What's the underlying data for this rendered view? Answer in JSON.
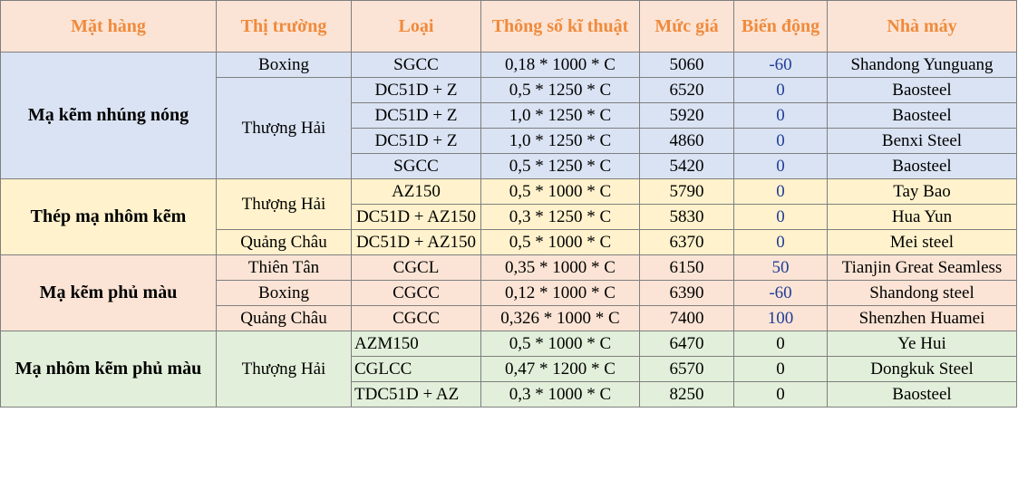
{
  "headers": [
    "Mặt hàng",
    "Thị trường",
    "Loại",
    "Thông số kĩ thuật",
    "Mức giá",
    "Biến động",
    "Nhà máy"
  ],
  "groups": [
    {
      "category": "Mạ kẽm nhúng nóng",
      "markets": [
        "Boxing",
        "Thượng Hải"
      ],
      "rows": [
        {
          "type": "SGCC",
          "spec": "0,18 * 1000 * C",
          "price": "5060",
          "change": "-60",
          "factory": "Shandong Yunguang"
        },
        {
          "type": "DC51D + Z",
          "spec": "0,5 * 1250 * C",
          "price": "6520",
          "change": "0",
          "factory": "Baosteel"
        },
        {
          "type": "DC51D + Z",
          "spec": "1,0 * 1250 * C",
          "price": "5920",
          "change": "0",
          "factory": "Baosteel"
        },
        {
          "type": "DC51D + Z",
          "spec": "1,0 * 1250 * C",
          "price": "4860",
          "change": "0",
          "factory": "Benxi Steel"
        },
        {
          "type": "SGCC",
          "spec": "0,5 * 1250 * C",
          "price": "5420",
          "change": "0",
          "factory": "Baosteel"
        }
      ]
    },
    {
      "category": "Thép mạ nhôm kẽm",
      "markets": [
        "Thượng Hải",
        "Quảng Châu"
      ],
      "rows": [
        {
          "type": "AZ150",
          "spec": "0,5 * 1000 * C",
          "price": "5790",
          "change": "0",
          "factory": "Tay Bao"
        },
        {
          "type": "DC51D + AZ150",
          "spec": "0,3 * 1250 * C",
          "price": "5830",
          "change": "0",
          "factory": "Hua Yun"
        },
        {
          "type": "DC51D + AZ150",
          "spec": "0,5 * 1000 * C",
          "price": "6370",
          "change": "0",
          "factory": "Mei steel"
        }
      ]
    },
    {
      "category": "Mạ kẽm phủ màu",
      "markets": [
        "Thiên Tân",
        "Boxing",
        "Quảng Châu"
      ],
      "rows": [
        {
          "type": "CGCL",
          "spec": "0,35 * 1000 * C",
          "price": "6150",
          "change": "50",
          "factory": "Tianjin Great Seamless"
        },
        {
          "type": "CGCC",
          "spec": "0,12 * 1000 * C",
          "price": "6390",
          "change": "-60",
          "factory": "Shandong steel"
        },
        {
          "type": "CGCC",
          "spec": "0,326 * 1000 * C",
          "price": "7400",
          "change": "100",
          "factory": "Shenzhen Huamei"
        }
      ]
    },
    {
      "category": "Mạ nhôm kẽm phủ màu",
      "markets": [
        "Thượng Hải"
      ],
      "rows": [
        {
          "type": "AZM150",
          "spec": "0,5 * 1000 * C",
          "price": "6470",
          "change": "0",
          "factory": "Ye Hui"
        },
        {
          "type": "CGLCC",
          "spec": "0,47 * 1200 * C",
          "price": "6570",
          "change": "0",
          "factory": "Dongkuk Steel"
        },
        {
          "type": "TDC51D + AZ",
          "spec": "0,3 * 1000 * C",
          "price": "8250",
          "change": "0",
          "factory": "Baosteel"
        }
      ]
    }
  ]
}
